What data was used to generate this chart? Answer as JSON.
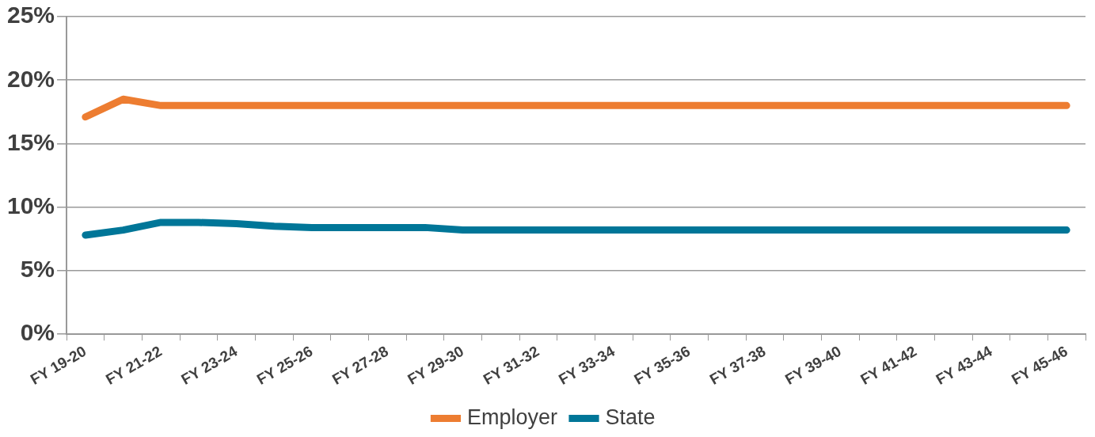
{
  "chart_data": {
    "type": "line",
    "categories": [
      "FY 19-20",
      null,
      "FY 21-22",
      null,
      "FY 23-24",
      null,
      "FY 25-26",
      null,
      "FY 27-28",
      null,
      "FY 29-30",
      null,
      "FY 31-32",
      null,
      "FY 33-34",
      null,
      "FY 35-36",
      null,
      "FY 37-38",
      null,
      "FY 39-40",
      null,
      "FY 41-42",
      null,
      "FY 43-44",
      null,
      "FY 45-46"
    ],
    "series": [
      {
        "name": "Employer",
        "color": "#ed7d31",
        "values": [
          17.1,
          18.5,
          18.0,
          18.0,
          18.0,
          18.0,
          18.0,
          18.0,
          18.0,
          18.0,
          18.0,
          18.0,
          18.0,
          18.0,
          18.0,
          18.0,
          18.0,
          18.0,
          18.0,
          18.0,
          18.0,
          18.0,
          18.0,
          18.0,
          18.0,
          18.0,
          18.0
        ]
      },
      {
        "name": "State",
        "color": "#007698",
        "values": [
          7.8,
          8.2,
          8.8,
          8.8,
          8.7,
          8.5,
          8.4,
          8.4,
          8.4,
          8.4,
          8.2,
          8.2,
          8.2,
          8.2,
          8.2,
          8.2,
          8.2,
          8.2,
          8.2,
          8.2,
          8.2,
          8.2,
          8.2,
          8.2,
          8.2,
          8.2,
          8.2
        ]
      }
    ],
    "ylim": [
      0,
      25
    ],
    "yticks": [
      {
        "value": 0,
        "label": "0%"
      },
      {
        "value": 5,
        "label": "5%"
      },
      {
        "value": 10,
        "label": "10%"
      },
      {
        "value": 15,
        "label": "15%"
      },
      {
        "value": 20,
        "label": "20%"
      },
      {
        "value": 25,
        "label": "25%"
      }
    ],
    "grid": "y",
    "legend": "bottom",
    "marker": "none",
    "line_style": "solid"
  }
}
